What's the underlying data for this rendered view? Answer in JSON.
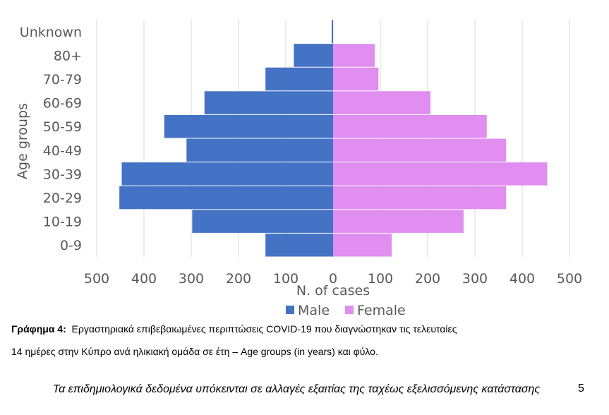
{
  "chart_data": {
    "type": "bar",
    "orientation": "horizontal-population-pyramid",
    "categories": [
      "0-9",
      "10-19",
      "20-29",
      "30-39",
      "40-49",
      "50-59",
      "60-69",
      "70-79",
      "80+",
      "Unknown"
    ],
    "series": [
      {
        "name": "Male",
        "values": [
          143,
          298,
          452,
          447,
          310,
          357,
          272,
          143,
          83,
          3
        ],
        "color": "#4472C4"
      },
      {
        "name": "Female",
        "values": [
          124,
          276,
          366,
          453,
          366,
          325,
          206,
          96,
          88,
          0
        ],
        "color": "#E08EF0"
      }
    ],
    "xlabel": "N. of cases",
    "ylabel": "Age groups",
    "xlim": [
      -500,
      500
    ],
    "x_ticks": [
      "500",
      "400",
      "300",
      "200",
      "100",
      "0",
      "100",
      "200",
      "300",
      "400",
      "500"
    ],
    "grid": "vertical",
    "legend": "bottom"
  },
  "caption": {
    "label": "Γράφημα 4:",
    "line1": "Εργαστηριακά επιβεβαιωμένες περιπτώσεις COVID-19 που διαγνώστηκαν τις τελευταίες",
    "line2": "14 ημέρες στην Κύπρο ανά ηλικιακή ομάδα σε έτη – Age groups (in years) και φύλο."
  },
  "footer": {
    "text": "Τα επιδημιολογικά δεδομένα υπόκεινται σε αλλαγές εξαιτίας της ταχέως εξελισσόμενης κατάστασης",
    "page_number": "5"
  }
}
